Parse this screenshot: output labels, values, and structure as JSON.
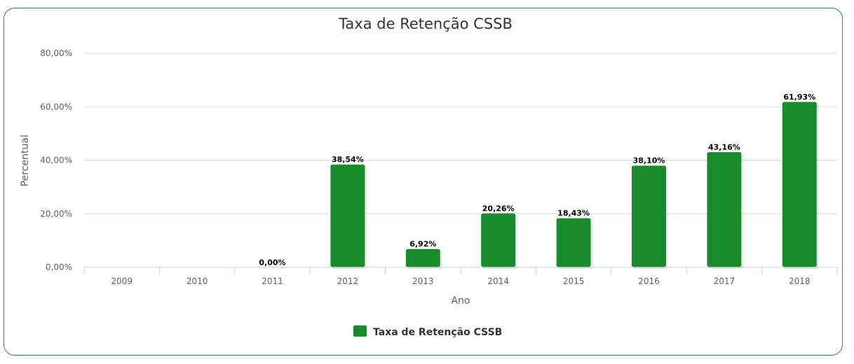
{
  "chart_data": {
    "type": "bar",
    "title": "Taxa de Retenção CSSB",
    "xlabel": "Ano",
    "ylabel": "Percentual",
    "categories": [
      "2009",
      "2010",
      "2011",
      "2012",
      "2013",
      "2014",
      "2015",
      "2016",
      "2017",
      "2018"
    ],
    "series": [
      {
        "name": "Taxa de Retenção CSSB",
        "values": [
          null,
          null,
          0.0,
          38.54,
          6.92,
          20.26,
          18.43,
          38.1,
          43.16,
          61.93
        ],
        "labels": [
          "",
          "",
          "0,00%",
          "38,54%",
          "6,92%",
          "20,26%",
          "18,43%",
          "38,10%",
          "43,16%",
          "61,93%"
        ],
        "color": "#1a8a2e"
      }
    ],
    "ylim": [
      0,
      80
    ],
    "yticks": [
      "0,00%",
      "20,00%",
      "40,00%",
      "60,00%",
      "80,00%"
    ],
    "grid": true,
    "legend": "bottom-center"
  }
}
